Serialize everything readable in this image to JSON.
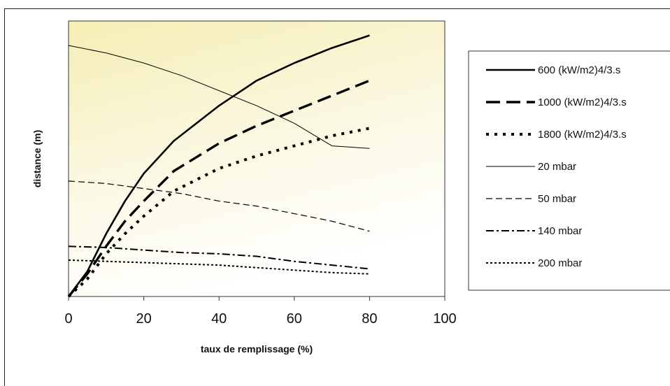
{
  "chart_data": {
    "type": "line",
    "xlabel": "taux de remplissage (%)",
    "ylabel": "distance (m)",
    "xlim": [
      0,
      100
    ],
    "xticks": [
      0,
      20,
      40,
      60,
      80,
      100
    ],
    "ylim": [
      0,
      100
    ],
    "y_tick_labels_shown": false,
    "grid": false,
    "legend_position": "right",
    "plot_background": "gradient-yellow-to-white",
    "series": [
      {
        "name": "600 (kW/m2)4/3.s",
        "style": "solid-thick",
        "x": [
          0,
          5,
          10,
          15,
          20,
          28,
          40,
          50,
          60,
          70,
          80
        ],
        "y": [
          0,
          10,
          25,
          38,
          49,
          62,
          76,
          86,
          93,
          99,
          104
        ]
      },
      {
        "name": "1000 (kW/m2)4/3.s",
        "style": "dash-long-thick",
        "x": [
          0,
          5,
          10,
          15,
          20,
          28,
          40,
          50,
          60,
          70,
          80
        ],
        "y": [
          0,
          9,
          20,
          30,
          38,
          50,
          61,
          68,
          74,
          80,
          86
        ]
      },
      {
        "name": "1800 (kW/m2)4/3.s",
        "style": "dot-thick",
        "x": [
          0,
          5,
          10,
          15,
          20,
          28,
          40,
          50,
          60,
          70,
          80
        ],
        "y": [
          0,
          7,
          17,
          25,
          32,
          42,
          51,
          56,
          60,
          64,
          67
        ]
      },
      {
        "name": "20 mbar",
        "style": "solid-thin",
        "x": [
          0,
          10,
          20,
          30,
          40,
          50,
          60,
          70,
          80
        ],
        "y": [
          100,
          97,
          93,
          88,
          82,
          76,
          69,
          60,
          59
        ]
      },
      {
        "name": "50 mbar",
        "style": "dash-thin",
        "x": [
          0,
          10,
          20,
          30,
          40,
          50,
          60,
          70,
          80
        ],
        "y": [
          46,
          45,
          43,
          41,
          38,
          36,
          33,
          30,
          26
        ]
      },
      {
        "name": "140 mbar",
        "style": "dashdot",
        "x": [
          0,
          10,
          20,
          30,
          40,
          50,
          60,
          70,
          80
        ],
        "y": [
          20,
          19.5,
          18.5,
          17.5,
          17,
          16,
          14,
          12.5,
          11
        ]
      },
      {
        "name": "200 mbar",
        "style": "dot-thin",
        "x": [
          0,
          10,
          20,
          30,
          40,
          50,
          60,
          70,
          80
        ],
        "y": [
          14.5,
          14,
          13.5,
          13,
          12.5,
          11.5,
          10.5,
          9.5,
          9
        ]
      }
    ]
  }
}
